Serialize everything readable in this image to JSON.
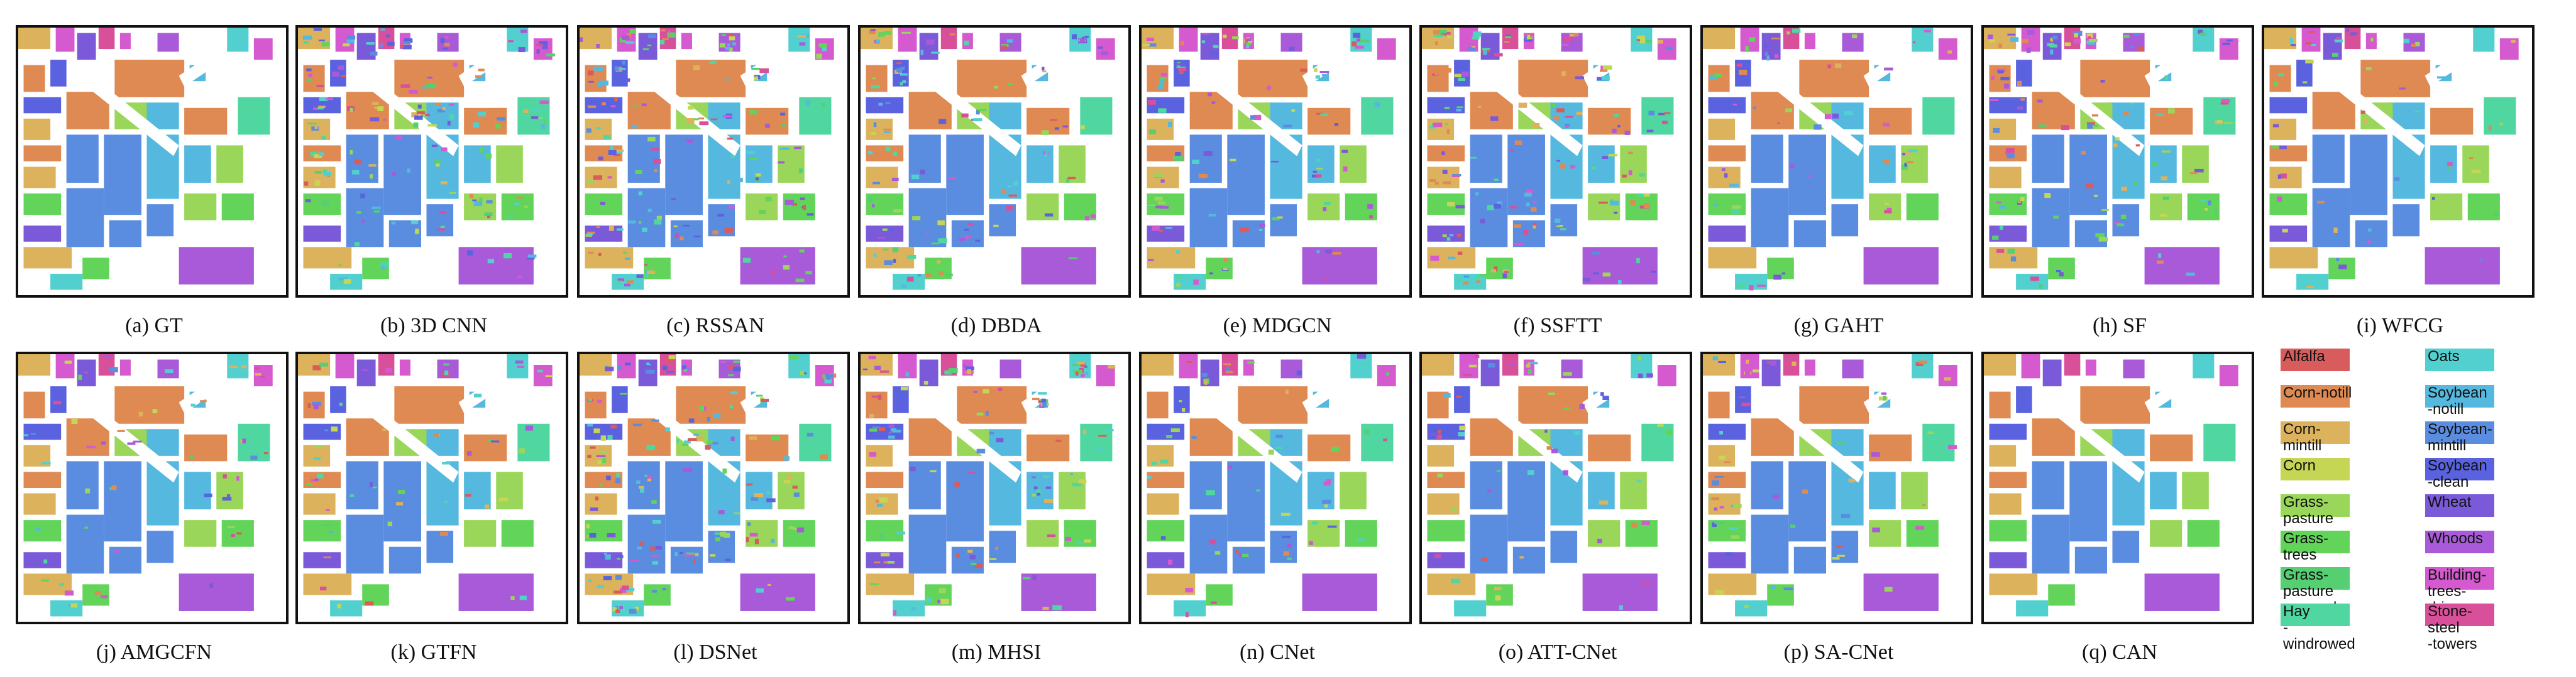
{
  "panels": [
    {
      "caption": "(a) GT",
      "noise": 0
    },
    {
      "caption": "(b) 3D CNN",
      "noise": 3
    },
    {
      "caption": "(c) RSSAN",
      "noise": 3
    },
    {
      "caption": "(d) DBDA",
      "noise": 2
    },
    {
      "caption": "(e) MDGCN",
      "noise": 2
    },
    {
      "caption": "(f) SSFTT",
      "noise": 3
    },
    {
      "caption": "(g) GAHT",
      "noise": 1
    },
    {
      "caption": "(h) SF",
      "noise": 2
    },
    {
      "caption": "(i) WFCG",
      "noise": 1
    },
    {
      "caption": "(j) AMGCFN",
      "noise": 1
    },
    {
      "caption": "(k) GTFN",
      "noise": 1
    },
    {
      "caption": "(l) DSNet",
      "noise": 3
    },
    {
      "caption": "(m) MHSI",
      "noise": 2
    },
    {
      "caption": "(n) CNet",
      "noise": 1
    },
    {
      "caption": "(o) ATT-CNet",
      "noise": 1
    },
    {
      "caption": "(p) SA-CNet",
      "noise": 1
    },
    {
      "caption": "(q) CAN",
      "noise": 0
    }
  ],
  "legend": [
    {
      "label": "Alfalfa",
      "color": "#d95c5c"
    },
    {
      "label": "Corn-notill",
      "color": "#df8a52"
    },
    {
      "label": "Corn-mintill",
      "color": "#dcb35c"
    },
    {
      "label": "Corn",
      "color": "#c5d654"
    },
    {
      "label": "Grass-pasture",
      "color": "#9ad65a"
    },
    {
      "label": "Grass-trees",
      "color": "#62d45a"
    },
    {
      "label": "Grass-pasture\n-mowed",
      "color": "#55cf72"
    },
    {
      "label": "Hay\n-windrowed",
      "color": "#50d6a0"
    },
    {
      "label": "Oats",
      "color": "#52cfcf"
    },
    {
      "label": "Soybean\n-notill",
      "color": "#54b8df"
    },
    {
      "label": "Soybean-\nmintill",
      "color": "#5a8ce0"
    },
    {
      "label": "Soybean\n-clean",
      "color": "#5a62df"
    },
    {
      "label": "Wheat",
      "color": "#7a5ad9"
    },
    {
      "label": "Whoods",
      "color": "#a85ad9"
    },
    {
      "label": "Building-\ntrees-\ndriver",
      "color": "#d55acf"
    },
    {
      "label": "Stone-steel\n-towers",
      "color": "#d8509a"
    }
  ]
}
